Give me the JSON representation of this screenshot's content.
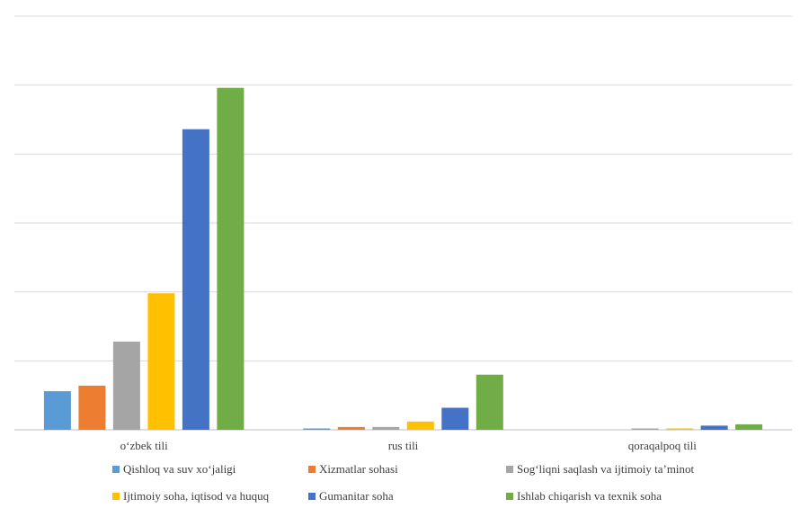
{
  "chart_data": {
    "type": "bar",
    "categories": [
      "o‘zbek tili",
      "rus tili",
      "qoraqalpoq tili"
    ],
    "ylim": [
      0,
      30
    ],
    "y_gridlines": [
      0,
      5,
      10,
      15,
      20,
      25,
      30
    ],
    "grid": true,
    "legend_position": "bottom",
    "series": [
      {
        "name": "Qishloq va suv xo‘jaligi",
        "color": "#5B9BD5",
        "values": [
          2.8,
          0.1,
          0.0
        ]
      },
      {
        "name": "Xizmatlar sohasi",
        "color": "#ED7D31",
        "values": [
          3.2,
          0.2,
          0.0
        ]
      },
      {
        "name": "Sog‘liqni saqlash va ijtimoiy ta’minot",
        "color": "#A5A5A5",
        "values": [
          6.4,
          0.2,
          0.1
        ]
      },
      {
        "name": "Ijtimoiy soha, iqtisod va huquq",
        "color": "#FFC000",
        "values": [
          9.9,
          0.6,
          0.1
        ]
      },
      {
        "name": "Gumanitar soha",
        "color": "#4472C4",
        "values": [
          21.8,
          1.6,
          0.3
        ]
      },
      {
        "name": "Ishlab chiqarish va texnik soha",
        "color": "#70AD47",
        "values": [
          24.8,
          4.0,
          0.4
        ]
      }
    ]
  }
}
